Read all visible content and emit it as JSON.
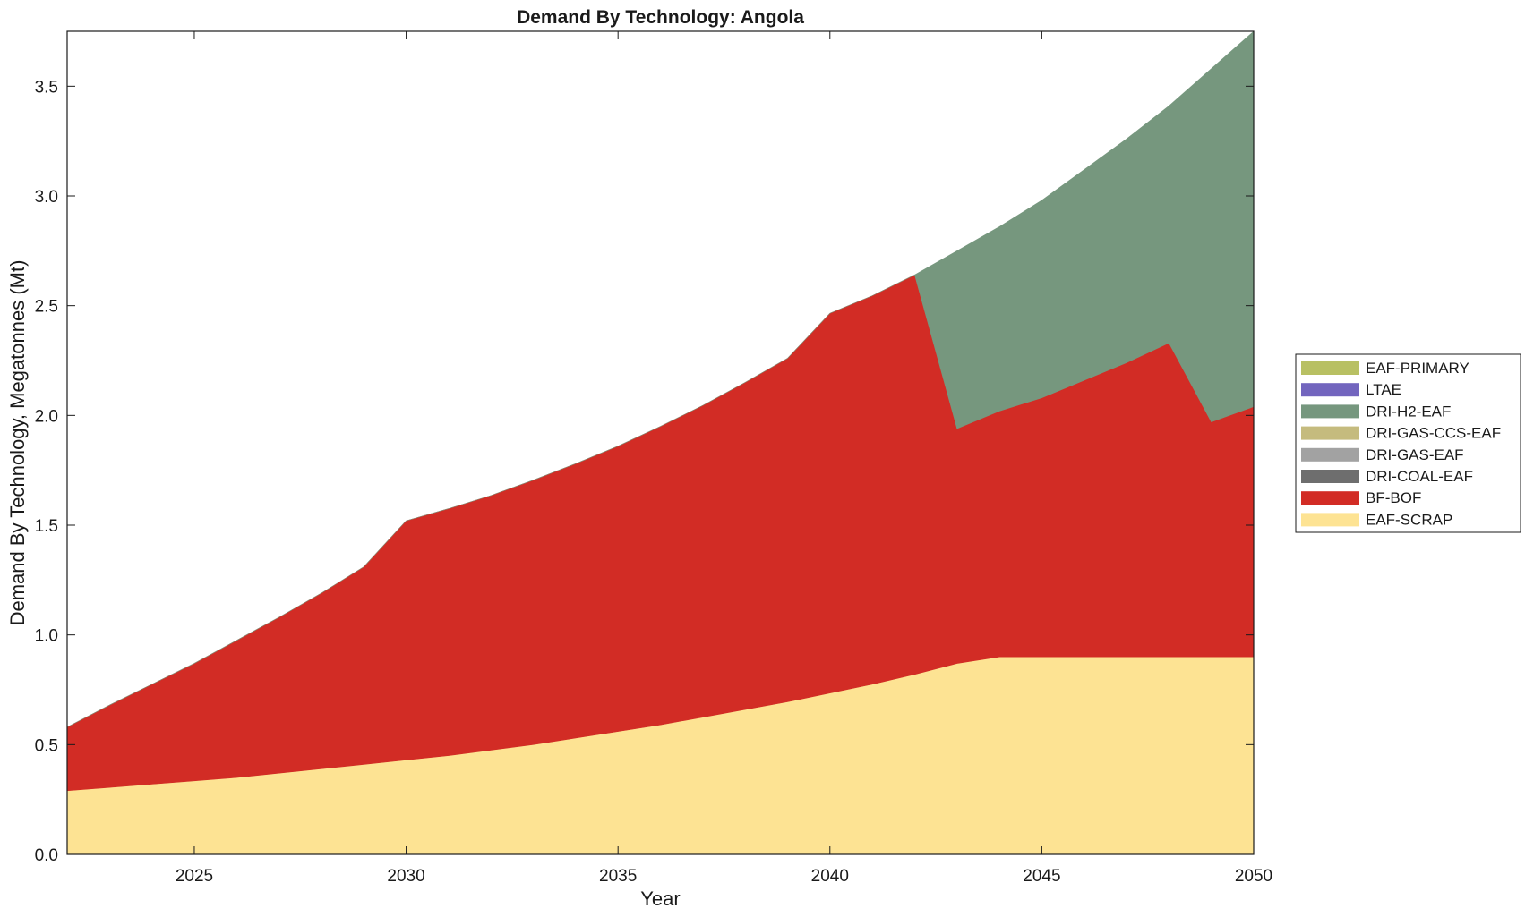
{
  "chart_data": {
    "type": "area",
    "stacked": true,
    "title": "Demand By Technology: Angola",
    "xlabel": "Year",
    "ylabel": "Demand By Technology, Megatonnes (Mt)",
    "xlim": [
      2022,
      2050
    ],
    "ylim": [
      0,
      3.75
    ],
    "x_ticks": [
      2025,
      2030,
      2035,
      2040,
      2045,
      2050
    ],
    "y_ticks": [
      0.0,
      0.5,
      1.0,
      1.5,
      2.0,
      2.5,
      3.0,
      3.5
    ],
    "x_tick_labels": [
      "2025",
      "2030",
      "2035",
      "2040",
      "2045",
      "2050"
    ],
    "y_tick_labels": [
      "0.0",
      "0.5",
      "1.0",
      "1.5",
      "2.0",
      "2.5",
      "3.0",
      "3.5"
    ],
    "grid": false,
    "legend_position": "right",
    "x": [
      2022,
      2023,
      2024,
      2025,
      2026,
      2027,
      2028,
      2029,
      2030,
      2031,
      2032,
      2033,
      2034,
      2035,
      2036,
      2037,
      2038,
      2039,
      2040,
      2041,
      2042,
      2043,
      2044,
      2045,
      2046,
      2047,
      2048,
      2049,
      2050
    ],
    "series": [
      {
        "name": "EAF-SCRAP",
        "color": "#fde393",
        "values": [
          0.29,
          0.305,
          0.32,
          0.335,
          0.35,
          0.37,
          0.39,
          0.41,
          0.43,
          0.45,
          0.475,
          0.5,
          0.53,
          0.56,
          0.59,
          0.625,
          0.66,
          0.695,
          0.735,
          0.775,
          0.82,
          0.87,
          0.9,
          0.9,
          0.9,
          0.9,
          0.9,
          0.9,
          0.9
        ]
      },
      {
        "name": "BF-BOF",
        "color": "#d22c25",
        "values": [
          0.29,
          0.375,
          0.455,
          0.535,
          0.625,
          0.71,
          0.8,
          0.9,
          1.09,
          1.125,
          1.16,
          1.205,
          1.25,
          1.3,
          1.36,
          1.42,
          1.49,
          1.565,
          1.73,
          1.77,
          1.82,
          1.07,
          1.12,
          1.18,
          1.26,
          1.34,
          1.43,
          1.07,
          1.14
        ]
      },
      {
        "name": "DRI-COAL-EAF",
        "color": "#6e6e6e",
        "values": [
          0,
          0,
          0,
          0,
          0,
          0,
          0,
          0,
          0,
          0,
          0,
          0,
          0,
          0,
          0,
          0,
          0,
          0,
          0,
          0,
          0,
          0,
          0,
          0,
          0,
          0,
          0,
          0,
          0
        ]
      },
      {
        "name": "DRI-GAS-EAF",
        "color": "#a2a2a2",
        "values": [
          0,
          0,
          0,
          0,
          0,
          0,
          0,
          0,
          0,
          0,
          0,
          0,
          0,
          0,
          0,
          0,
          0,
          0,
          0,
          0,
          0,
          0,
          0,
          0,
          0,
          0,
          0,
          0,
          0
        ]
      },
      {
        "name": "DRI-GAS-CCS-EAF",
        "color": "#c5bb7e",
        "values": [
          0,
          0,
          0,
          0,
          0,
          0,
          0,
          0,
          0,
          0,
          0,
          0,
          0,
          0,
          0,
          0,
          0,
          0,
          0,
          0,
          0,
          0,
          0,
          0,
          0,
          0,
          0,
          0,
          0
        ]
      },
      {
        "name": "DRI-H2-EAF",
        "color": "#76977e",
        "values": [
          0,
          0,
          0,
          0,
          0,
          0,
          0,
          0,
          0,
          0,
          0,
          0,
          0,
          0,
          0,
          0,
          0,
          0.0,
          0,
          0,
          0,
          0.81,
          0.84,
          0.9,
          0.96,
          1.02,
          1.08,
          1.61,
          1.71
        ]
      },
      {
        "name": "LTAE",
        "color": "#7265be",
        "values": [
          0,
          0,
          0,
          0,
          0,
          0,
          0,
          0,
          0,
          0,
          0,
          0,
          0,
          0,
          0,
          0,
          0,
          0,
          0,
          0,
          0,
          0,
          0,
          0,
          0,
          0,
          0,
          0,
          0
        ]
      },
      {
        "name": "EAF-PRIMARY",
        "color": "#b8c063",
        "values": [
          0,
          0,
          0,
          0,
          0,
          0,
          0,
          0,
          0,
          0,
          0,
          0,
          0,
          0,
          0,
          0,
          0,
          0,
          0,
          0,
          0,
          0,
          0,
          0,
          0,
          0,
          0,
          0,
          0
        ]
      }
    ],
    "legend_order": [
      "EAF-PRIMARY",
      "LTAE",
      "DRI-H2-EAF",
      "DRI-GAS-CCS-EAF",
      "DRI-GAS-EAF",
      "DRI-COAL-EAF",
      "BF-BOF",
      "EAF-SCRAP"
    ]
  }
}
